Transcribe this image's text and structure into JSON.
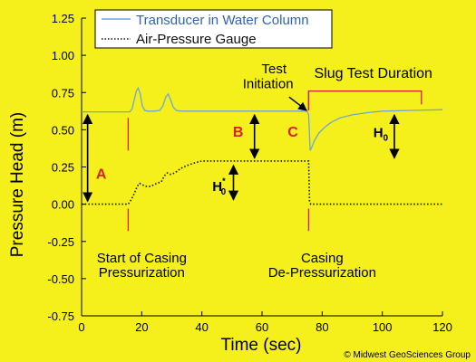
{
  "chart_data": {
    "type": "line",
    "xlabel": "Time (sec)",
    "ylabel": "Pressure Head (m)",
    "xlim": [
      0,
      120
    ],
    "ylim": [
      -0.75,
      1.25
    ],
    "x_ticks": [
      0,
      20,
      40,
      60,
      80,
      100,
      120
    ],
    "x_tick_labels": [
      "0",
      "20",
      "40",
      "60",
      "80",
      "100",
      "120"
    ],
    "y_ticks": [
      1.25,
      1.0,
      0.75,
      0.5,
      0.25,
      0.0,
      -0.25,
      -0.5,
      -0.75
    ],
    "y_tick_labels": [
      "1.25",
      "1.00",
      "0.75",
      "0.50",
      "0.25",
      "0.00",
      "-0.25",
      "-0.50",
      "-0.75"
    ],
    "grid": false,
    "legend_position": "top-left",
    "series": [
      {
        "name": "Transducer in Water Column",
        "color": "#6fa6d6",
        "style": "solid",
        "points": [
          [
            0,
            0.62
          ],
          [
            16,
            0.62
          ],
          [
            16.8,
            0.64
          ],
          [
            17.5,
            0.7
          ],
          [
            18.2,
            0.76
          ],
          [
            18.8,
            0.78
          ],
          [
            19.5,
            0.74
          ],
          [
            20.2,
            0.66
          ],
          [
            21,
            0.63
          ],
          [
            22,
            0.625
          ],
          [
            24,
            0.625
          ],
          [
            26,
            0.63
          ],
          [
            27,
            0.66
          ],
          [
            28,
            0.72
          ],
          [
            28.8,
            0.74
          ],
          [
            29.6,
            0.7
          ],
          [
            30.5,
            0.65
          ],
          [
            31.5,
            0.63
          ],
          [
            33,
            0.625
          ],
          [
            40,
            0.625
          ],
          [
            55,
            0.625
          ],
          [
            70,
            0.625
          ],
          [
            75,
            0.625
          ],
          [
            75.5,
            0.6
          ],
          [
            76,
            0.36
          ],
          [
            76.5,
            0.38
          ],
          [
            77.5,
            0.43
          ],
          [
            79,
            0.48
          ],
          [
            81,
            0.52
          ],
          [
            83,
            0.55
          ],
          [
            86,
            0.58
          ],
          [
            90,
            0.6
          ],
          [
            95,
            0.615
          ],
          [
            100,
            0.625
          ],
          [
            110,
            0.63
          ],
          [
            120,
            0.635
          ]
        ]
      },
      {
        "name": "Air-Pressure Gauge",
        "color": "#111111",
        "style": "dotted",
        "points": [
          [
            0,
            0.0
          ],
          [
            15.5,
            0.0
          ],
          [
            16.5,
            0.03
          ],
          [
            17.5,
            0.07
          ],
          [
            18.5,
            0.12
          ],
          [
            19.3,
            0.14
          ],
          [
            20.2,
            0.13
          ],
          [
            21.5,
            0.12
          ],
          [
            23,
            0.12
          ],
          [
            25,
            0.14
          ],
          [
            26.5,
            0.15
          ],
          [
            27.5,
            0.19
          ],
          [
            28.5,
            0.21
          ],
          [
            29.5,
            0.2
          ],
          [
            31,
            0.21
          ],
          [
            33,
            0.24
          ],
          [
            35,
            0.26
          ],
          [
            38,
            0.28
          ],
          [
            40,
            0.29
          ],
          [
            42,
            0.29
          ],
          [
            55,
            0.29
          ],
          [
            70,
            0.29
          ],
          [
            75.5,
            0.29
          ],
          [
            75.8,
            0.02
          ],
          [
            76.2,
            0.0
          ],
          [
            90,
            0.0
          ],
          [
            120,
            0.0
          ]
        ]
      }
    ],
    "annotations": {
      "a_label": "A",
      "b_label": "B",
      "c_label": "C",
      "h0_label": "H",
      "h0_sub": "0",
      "h0star_label": "H",
      "h0star_sub": "0",
      "h0star_sup": "*",
      "test_initiation": [
        "Test",
        "Initiation"
      ],
      "slug_test_duration": "Slug Test Duration",
      "start_casing": [
        "Start of Casing",
        "Pressurization"
      ],
      "casing_depress": [
        "Casing",
        "De-Pressurization"
      ],
      "marker_color": "#d81f26"
    },
    "copyright": "© Midwest GeoSciences Group"
  }
}
